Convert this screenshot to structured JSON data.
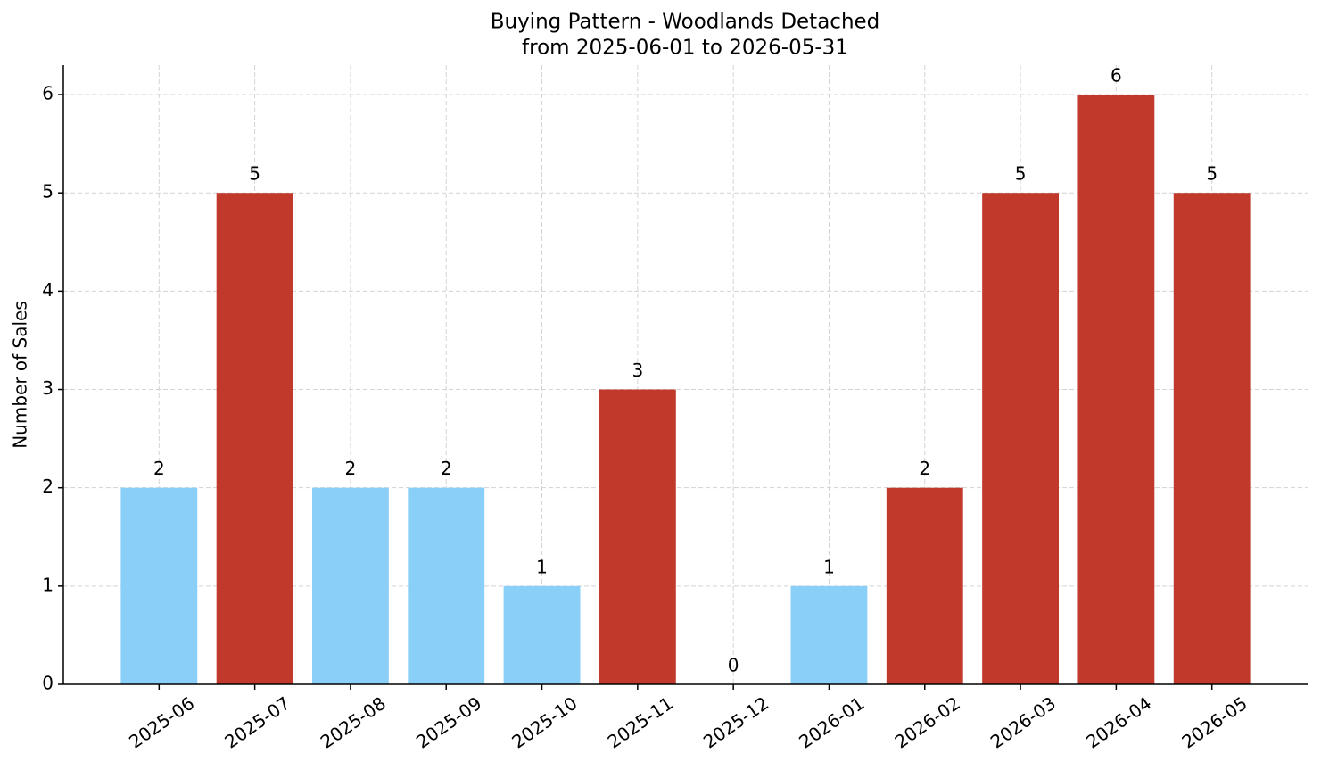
{
  "chart_data": {
    "type": "bar",
    "title": "Buying Pattern - Woodlands Detached",
    "subtitle": "from 2025-06-01 to 2026-05-31",
    "y_label": "Number of Sales",
    "categories": [
      "2025-06",
      "2025-07",
      "2025-08",
      "2025-09",
      "2025-10",
      "2025-11",
      "2025-12",
      "2026-01",
      "2026-02",
      "2026-03",
      "2026-04",
      "2026-05"
    ],
    "values": [
      2,
      5,
      2,
      2,
      1,
      3,
      0,
      1,
      2,
      5,
      6,
      5
    ],
    "colors": [
      "#89cff7",
      "#c0392b",
      "#89cff7",
      "#89cff7",
      "#89cff7",
      "#c0392b",
      "#89cff7",
      "#89cff7",
      "#c0392b",
      "#c0392b",
      "#c0392b",
      "#c0392b"
    ],
    "ylim": [
      0,
      6.3
    ],
    "yticks": [
      0,
      1,
      2,
      3,
      4,
      5,
      6
    ],
    "grid": true
  }
}
